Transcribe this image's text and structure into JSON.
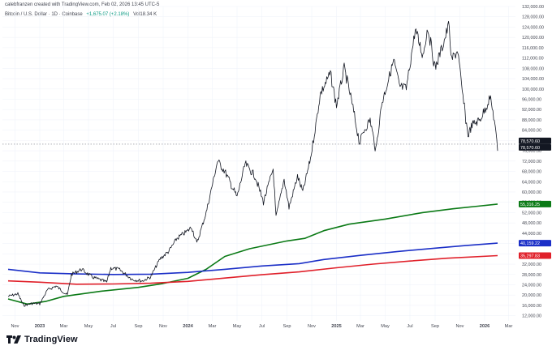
{
  "header": {
    "credit": "calebfranzen created with TradingView.com, Feb 02, 2026 13:45 UTC-5"
  },
  "symbol_bar": {
    "title": "Bitcoin / U.S. Dollar · 1D · Coinbase",
    "change": "+1,675.07 (+2.18%)",
    "volume": "Vol18.34 K"
  },
  "branding": {
    "name": "TradingView",
    "icon": "tradingview-logo-icon"
  },
  "colors": {
    "price": "#131722",
    "green_ma": "#0b7a16",
    "blue_ma": "#1b2fc7",
    "red_ma": "#e0202a",
    "grid": "#f0f3fa"
  },
  "chart_data": {
    "type": "line",
    "ylim": [
      10000,
      132000
    ],
    "x_ticks": [
      "Nov",
      "2023",
      "Mar",
      "May",
      "Jul",
      "Sep",
      "Nov",
      "2024",
      "Mar",
      "May",
      "Jul",
      "Sep",
      "Nov",
      "2025",
      "Mar",
      "May",
      "Jul",
      "Sep",
      "Nov",
      "2026",
      "Mar"
    ],
    "y_ticks": [
      "132,000.00",
      "128,000.00",
      "124,000.00",
      "120,000.00",
      "116,000.00",
      "112,000.00",
      "108,000.00",
      "104,000.00",
      "100,000.00",
      "96,000.00",
      "92,000.00",
      "88,000.00",
      "84,000.00",
      "80,000.00",
      "76,000.00",
      "72,000.00",
      "68,000.00",
      "64,000.00",
      "60,000.00",
      "56,000.00",
      "52,000.00",
      "48,000.00",
      "44,000.00",
      "40,000.00",
      "36,000.00",
      "32,000.00",
      "28,000.00",
      "24,000.00",
      "20,000.00",
      "16,000.00",
      "12,000.00"
    ],
    "current_price": 78570.6,
    "price_labels": [
      "78,570.60",
      "78,570.60"
    ],
    "series": [
      {
        "role": "price",
        "x": [
          "2022-10-15",
          "2022-11-08",
          "2022-11-22",
          "2022-12-15",
          "2023-01-01",
          "2023-01-20",
          "2023-02-10",
          "2023-03-10",
          "2023-03-20",
          "2023-04-14",
          "2023-05-10",
          "2023-06-15",
          "2023-06-25",
          "2023-07-15",
          "2023-08-18",
          "2023-09-11",
          "2023-10-01",
          "2023-10-24",
          "2023-11-15",
          "2023-12-05",
          "2024-01-01",
          "2024-01-10",
          "2024-01-23",
          "2024-02-15",
          "2024-03-14",
          "2024-04-01",
          "2024-05-01",
          "2024-05-21",
          "2024-06-15",
          "2024-07-05",
          "2024-07-29",
          "2024-08-05",
          "2024-08-25",
          "2024-09-06",
          "2024-09-27",
          "2024-10-10",
          "2024-10-29",
          "2024-11-13",
          "2024-11-22",
          "2024-12-17",
          "2025-01-01",
          "2025-01-20",
          "2025-02-05",
          "2025-02-27",
          "2025-03-10",
          "2025-03-25",
          "2025-04-08",
          "2025-04-22",
          "2025-05-22",
          "2025-06-05",
          "2025-06-22",
          "2025-07-14",
          "2025-08-02",
          "2025-08-14",
          "2025-09-01",
          "2025-09-20",
          "2025-10-06",
          "2025-10-10",
          "2025-10-27",
          "2025-11-05",
          "2025-11-21",
          "2025-12-01",
          "2025-12-20",
          "2026-01-05",
          "2026-01-14",
          "2026-01-25",
          "2026-02-02"
        ],
        "values": [
          19500,
          20500,
          16000,
          16800,
          16600,
          22000,
          23500,
          20000,
          28000,
          30000,
          27000,
          25000,
          30500,
          30000,
          26000,
          25500,
          27000,
          34000,
          37000,
          42000,
          45000,
          46500,
          40000,
          52000,
          72000,
          68000,
          58000,
          71000,
          66000,
          56000,
          69000,
          50000,
          65000,
          54000,
          66000,
          60000,
          73000,
          88000,
          98000,
          106000,
          93500,
          108000,
          97000,
          79000,
          84000,
          88000,
          76000,
          94000,
          111000,
          101000,
          100000,
          123000,
          113000,
          124000,
          108000,
          117000,
          125500,
          111000,
          115000,
          101000,
          82000,
          86000,
          88000,
          93000,
          97000,
          88000,
          76000
        ]
      },
      {
        "role": "ma-green",
        "value_label": "55,316.25",
        "x": [
          "2022-10-15",
          "2022-12-01",
          "2023-01-15",
          "2023-03-01",
          "2023-06-01",
          "2023-09-01",
          "2023-11-01",
          "2024-01-01",
          "2024-02-15",
          "2024-04-01",
          "2024-06-01",
          "2024-09-01",
          "2024-10-15",
          "2024-12-01",
          "2025-02-01",
          "2025-05-01",
          "2025-08-01",
          "2025-10-15",
          "2025-12-15",
          "2026-02-02"
        ],
        "values": [
          18500,
          16500,
          17500,
          19500,
          21500,
          23000,
          24500,
          26500,
          30000,
          35000,
          38000,
          41000,
          42000,
          45000,
          47500,
          49500,
          52000,
          53500,
          54500,
          55316
        ]
      },
      {
        "role": "ma-blue",
        "value_label": "40,159.22",
        "x": [
          "2022-10-15",
          "2023-01-01",
          "2023-04-01",
          "2023-07-01",
          "2023-10-01",
          "2024-01-01",
          "2024-04-01",
          "2024-07-01",
          "2024-10-01",
          "2024-12-01",
          "2025-03-01",
          "2025-06-01",
          "2025-09-01",
          "2025-11-15",
          "2026-02-02"
        ],
        "values": [
          30000,
          28600,
          28200,
          28000,
          28100,
          28800,
          30000,
          31300,
          32200,
          33800,
          35400,
          36900,
          38200,
          39200,
          40159
        ]
      },
      {
        "role": "ma-red",
        "value_label": "35,297.83",
        "x": [
          "2022-10-15",
          "2023-01-01",
          "2023-04-01",
          "2023-07-01",
          "2023-10-01",
          "2024-01-01",
          "2024-04-01",
          "2024-07-01",
          "2024-10-01",
          "2025-01-01",
          "2025-04-01",
          "2025-07-01",
          "2025-10-01",
          "2026-02-02"
        ],
        "values": [
          25500,
          25000,
          24200,
          24300,
          24600,
          25300,
          26600,
          27900,
          29000,
          30600,
          32000,
          33200,
          34300,
          35298
        ]
      }
    ]
  }
}
